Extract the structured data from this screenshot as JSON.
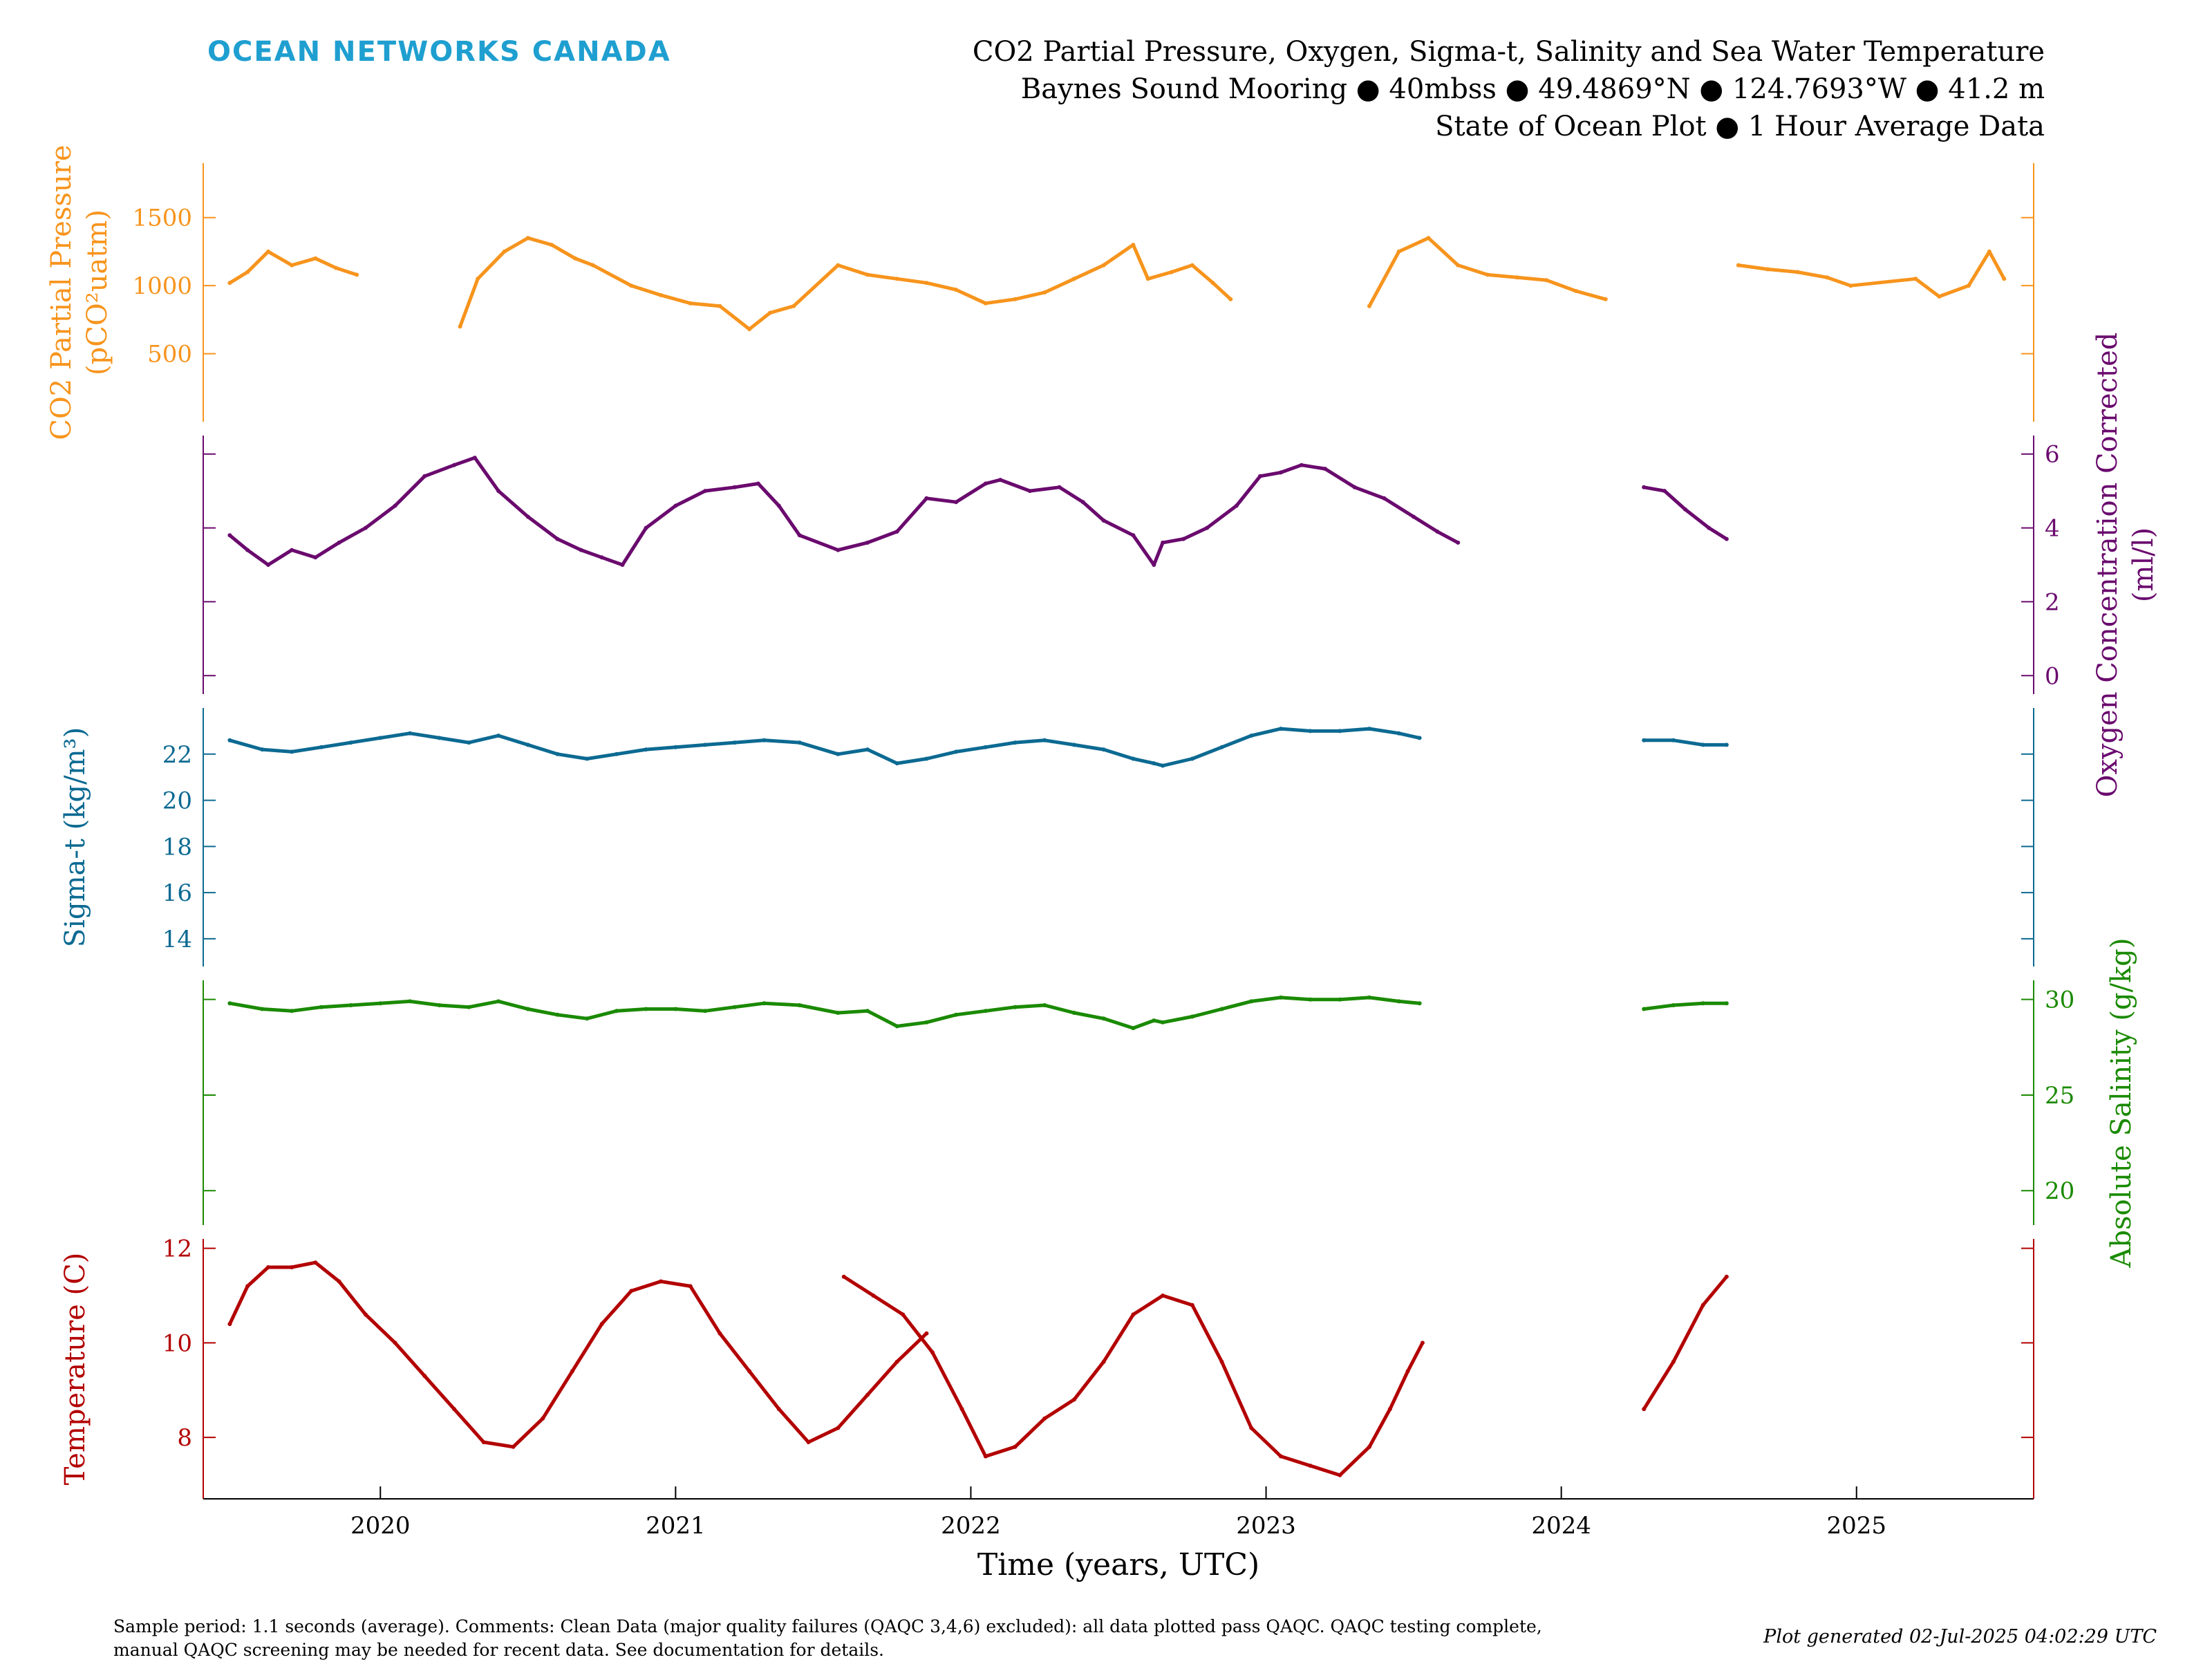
{
  "brand": "OCEAN NETWORKS CANADA",
  "header": {
    "title": "CO2 Partial Pressure, Oxygen, Sigma-t, Salinity and Sea Water Temperature",
    "line2": "Baynes Sound Mooring ● 40mbss ● 49.4869°N ● 124.7693°W ● 41.2 m",
    "line3": "State of Ocean Plot ● 1 Hour Average Data"
  },
  "footer": {
    "comment_line1": "Sample period: 1.1 seconds (average). Comments: Clean Data (major quality failures (QAQC 3,4,6) excluded): all data plotted pass QAQC. QAQC testing complete,",
    "comment_line2": "manual QAQC screening may be needed for recent data. See documentation for details.",
    "generated": "Plot generated 02-Jul-2025 04:02:29 UTC"
  },
  "chart_data": {
    "type": "line",
    "xlabel": "Time (years, UTC)",
    "x_range": [
      2019.4,
      2025.6
    ],
    "x_ticks": [
      "2020",
      "2021",
      "2022",
      "2023",
      "2024",
      "2025"
    ],
    "panels": [
      {
        "key": "co2",
        "label_line1": "CO2 Partial Pressure",
        "label_line2": "(pCO²uatm)",
        "axis_side": "left",
        "color": "#f7941d",
        "ylim": [
          0,
          1900
        ],
        "ticks": [
          "500",
          "1000",
          "1500"
        ],
        "points": [
          [
            2019.49,
            1020
          ],
          [
            2019.55,
            1100
          ],
          [
            2019.62,
            1250
          ],
          [
            2019.7,
            1150
          ],
          [
            2019.78,
            1200
          ],
          [
            2019.85,
            1130
          ],
          [
            2019.92,
            1080
          ],
          [
            2020.27,
            700
          ],
          [
            2020.33,
            1050
          ],
          [
            2020.42,
            1250
          ],
          [
            2020.5,
            1350
          ],
          [
            2020.58,
            1300
          ],
          [
            2020.66,
            1200
          ],
          [
            2020.72,
            1150
          ],
          [
            2020.85,
            1000
          ],
          [
            2020.95,
            930
          ],
          [
            2021.05,
            870
          ],
          [
            2021.15,
            850
          ],
          [
            2021.25,
            680
          ],
          [
            2021.32,
            800
          ],
          [
            2021.4,
            850
          ],
          [
            2021.55,
            1150
          ],
          [
            2021.65,
            1080
          ],
          [
            2021.75,
            1050
          ],
          [
            2021.85,
            1020
          ],
          [
            2021.95,
            970
          ],
          [
            2022.05,
            870
          ],
          [
            2022.15,
            900
          ],
          [
            2022.25,
            950
          ],
          [
            2022.35,
            1050
          ],
          [
            2022.45,
            1150
          ],
          [
            2022.55,
            1300
          ],
          [
            2022.6,
            1050
          ],
          [
            2022.68,
            1100
          ],
          [
            2022.75,
            1150
          ],
          [
            2022.82,
            1020
          ],
          [
            2022.88,
            900
          ],
          [
            2023.35,
            850
          ],
          [
            2023.45,
            1250
          ],
          [
            2023.55,
            1350
          ],
          [
            2023.65,
            1150
          ],
          [
            2023.75,
            1080
          ],
          [
            2023.85,
            1060
          ],
          [
            2023.95,
            1040
          ],
          [
            2024.05,
            960
          ],
          [
            2024.15,
            900
          ],
          [
            2024.6,
            1150
          ],
          [
            2024.7,
            1120
          ],
          [
            2024.8,
            1100
          ],
          [
            2024.9,
            1060
          ],
          [
            2024.98,
            1000
          ],
          [
            2025.2,
            1050
          ],
          [
            2025.28,
            920
          ],
          [
            2025.38,
            1000
          ],
          [
            2025.45,
            1250
          ],
          [
            2025.5,
            1050
          ]
        ]
      },
      {
        "key": "oxygen",
        "label_line1": "Oxygen Concentration Corrected",
        "label_line2": "(ml/l)",
        "axis_side": "right",
        "color": "#6a0a6e",
        "ylim": [
          -0.5,
          6.5
        ],
        "ticks": [
          "0",
          "2",
          "4",
          "6"
        ],
        "points": [
          [
            2019.49,
            3.8
          ],
          [
            2019.55,
            3.4
          ],
          [
            2019.62,
            3.0
          ],
          [
            2019.7,
            3.4
          ],
          [
            2019.78,
            3.2
          ],
          [
            2019.86,
            3.6
          ],
          [
            2019.95,
            4.0
          ],
          [
            2020.05,
            4.6
          ],
          [
            2020.15,
            5.4
          ],
          [
            2020.25,
            5.7
          ],
          [
            2020.32,
            5.9
          ],
          [
            2020.4,
            5.0
          ],
          [
            2020.5,
            4.3
          ],
          [
            2020.6,
            3.7
          ],
          [
            2020.68,
            3.4
          ],
          [
            2020.75,
            3.2
          ],
          [
            2020.82,
            3.0
          ],
          [
            2020.9,
            4.0
          ],
          [
            2021.0,
            4.6
          ],
          [
            2021.1,
            5.0
          ],
          [
            2021.2,
            5.1
          ],
          [
            2021.28,
            5.2
          ],
          [
            2021.35,
            4.6
          ],
          [
            2021.42,
            3.8
          ],
          [
            2021.55,
            3.4
          ],
          [
            2021.65,
            3.6
          ],
          [
            2021.75,
            3.9
          ],
          [
            2021.85,
            4.8
          ],
          [
            2021.95,
            4.7
          ],
          [
            2022.05,
            5.2
          ],
          [
            2022.1,
            5.3
          ],
          [
            2022.2,
            5.0
          ],
          [
            2022.3,
            5.1
          ],
          [
            2022.38,
            4.7
          ],
          [
            2022.45,
            4.2
          ],
          [
            2022.55,
            3.8
          ],
          [
            2022.62,
            3.0
          ],
          [
            2022.65,
            3.6
          ],
          [
            2022.72,
            3.7
          ],
          [
            2022.8,
            4.0
          ],
          [
            2022.9,
            4.6
          ],
          [
            2022.98,
            5.4
          ],
          [
            2023.05,
            5.5
          ],
          [
            2023.12,
            5.7
          ],
          [
            2023.2,
            5.6
          ],
          [
            2023.3,
            5.1
          ],
          [
            2023.4,
            4.8
          ],
          [
            2023.5,
            4.3
          ],
          [
            2023.58,
            3.9
          ],
          [
            2023.65,
            3.6
          ],
          [
            2024.28,
            5.1
          ],
          [
            2024.35,
            5.0
          ],
          [
            2024.42,
            4.5
          ],
          [
            2024.5,
            4.0
          ],
          [
            2024.56,
            3.7
          ]
        ]
      },
      {
        "key": "sigma",
        "label_line1": "Sigma-t (kg/m³)",
        "label_line2": "",
        "axis_side": "left",
        "color": "#0c6a92",
        "ylim": [
          12.8,
          24.0
        ],
        "ticks": [
          "14",
          "16",
          "18",
          "20",
          "22"
        ],
        "points": [
          [
            2019.49,
            22.6
          ],
          [
            2019.6,
            22.2
          ],
          [
            2019.7,
            22.1
          ],
          [
            2019.8,
            22.3
          ],
          [
            2019.9,
            22.5
          ],
          [
            2020.0,
            22.7
          ],
          [
            2020.1,
            22.9
          ],
          [
            2020.2,
            22.7
          ],
          [
            2020.3,
            22.5
          ],
          [
            2020.4,
            22.8
          ],
          [
            2020.5,
            22.4
          ],
          [
            2020.6,
            22.0
          ],
          [
            2020.7,
            21.8
          ],
          [
            2020.8,
            22.0
          ],
          [
            2020.9,
            22.2
          ],
          [
            2021.0,
            22.3
          ],
          [
            2021.1,
            22.4
          ],
          [
            2021.2,
            22.5
          ],
          [
            2021.3,
            22.6
          ],
          [
            2021.42,
            22.5
          ],
          [
            2021.55,
            22.0
          ],
          [
            2021.65,
            22.2
          ],
          [
            2021.75,
            21.6
          ],
          [
            2021.85,
            21.8
          ],
          [
            2021.95,
            22.1
          ],
          [
            2022.05,
            22.3
          ],
          [
            2022.15,
            22.5
          ],
          [
            2022.25,
            22.6
          ],
          [
            2022.35,
            22.4
          ],
          [
            2022.45,
            22.2
          ],
          [
            2022.55,
            21.8
          ],
          [
            2022.62,
            21.6
          ],
          [
            2022.65,
            21.5
          ],
          [
            2022.75,
            21.8
          ],
          [
            2022.85,
            22.3
          ],
          [
            2022.95,
            22.8
          ],
          [
            2023.05,
            23.1
          ],
          [
            2023.15,
            23.0
          ],
          [
            2023.25,
            23.0
          ],
          [
            2023.35,
            23.1
          ],
          [
            2023.45,
            22.9
          ],
          [
            2023.52,
            22.7
          ],
          [
            2024.28,
            22.6
          ],
          [
            2024.38,
            22.6
          ],
          [
            2024.48,
            22.4
          ],
          [
            2024.56,
            22.4
          ]
        ]
      },
      {
        "key": "salinity",
        "label_line1": "Absolute Salinity (g/kg)",
        "label_line2": "",
        "axis_side": "right",
        "color": "#1a8a00",
        "ylim": [
          18.2,
          31.0
        ],
        "ticks": [
          "20",
          "25",
          "30"
        ],
        "points": [
          [
            2019.49,
            29.8
          ],
          [
            2019.6,
            29.5
          ],
          [
            2019.7,
            29.4
          ],
          [
            2019.8,
            29.6
          ],
          [
            2019.9,
            29.7
          ],
          [
            2020.0,
            29.8
          ],
          [
            2020.1,
            29.9
          ],
          [
            2020.2,
            29.7
          ],
          [
            2020.3,
            29.6
          ],
          [
            2020.4,
            29.9
          ],
          [
            2020.5,
            29.5
          ],
          [
            2020.6,
            29.2
          ],
          [
            2020.7,
            29.0
          ],
          [
            2020.8,
            29.4
          ],
          [
            2020.9,
            29.5
          ],
          [
            2021.0,
            29.5
          ],
          [
            2021.1,
            29.4
          ],
          [
            2021.2,
            29.6
          ],
          [
            2021.3,
            29.8
          ],
          [
            2021.42,
            29.7
          ],
          [
            2021.55,
            29.3
          ],
          [
            2021.65,
            29.4
          ],
          [
            2021.75,
            28.6
          ],
          [
            2021.85,
            28.8
          ],
          [
            2021.95,
            29.2
          ],
          [
            2022.05,
            29.4
          ],
          [
            2022.15,
            29.6
          ],
          [
            2022.25,
            29.7
          ],
          [
            2022.35,
            29.3
          ],
          [
            2022.45,
            29.0
          ],
          [
            2022.55,
            28.5
          ],
          [
            2022.62,
            28.9
          ],
          [
            2022.65,
            28.8
          ],
          [
            2022.75,
            29.1
          ],
          [
            2022.85,
            29.5
          ],
          [
            2022.95,
            29.9
          ],
          [
            2023.05,
            30.1
          ],
          [
            2023.15,
            30.0
          ],
          [
            2023.25,
            30.0
          ],
          [
            2023.35,
            30.1
          ],
          [
            2023.45,
            29.9
          ],
          [
            2023.52,
            29.8
          ],
          [
            2024.28,
            29.5
          ],
          [
            2024.38,
            29.7
          ],
          [
            2024.48,
            29.8
          ],
          [
            2024.56,
            29.8
          ]
        ]
      },
      {
        "key": "temperature",
        "label_line1": "Temperature (C)",
        "label_line2": "",
        "axis_side": "left",
        "color": "#b30000",
        "ylim": [
          6.7,
          12.2
        ],
        "ticks": [
          "8",
          "10",
          "12"
        ],
        "points": [
          [
            2019.49,
            10.4
          ],
          [
            2019.55,
            11.2
          ],
          [
            2019.62,
            11.6
          ],
          [
            2019.7,
            11.6
          ],
          [
            2019.78,
            11.7
          ],
          [
            2019.86,
            11.3
          ],
          [
            2019.95,
            10.6
          ],
          [
            2020.05,
            10.0
          ],
          [
            2020.15,
            9.3
          ],
          [
            2020.25,
            8.6
          ],
          [
            2020.35,
            7.9
          ],
          [
            2020.45,
            7.8
          ],
          [
            2020.55,
            8.4
          ],
          [
            2020.65,
            9.4
          ],
          [
            2020.75,
            10.4
          ],
          [
            2020.85,
            11.1
          ],
          [
            2020.95,
            11.3
          ],
          [
            2021.05,
            11.2
          ],
          [
            2021.15,
            10.2
          ],
          [
            2021.25,
            9.4
          ],
          [
            2021.35,
            8.6
          ],
          [
            2021.45,
            7.9
          ],
          [
            2021.55,
            8.2
          ],
          [
            2021.65,
            8.9
          ],
          [
            2021.75,
            9.6
          ],
          [
            2021.85,
            10.2
          ],
          [
            2021.57,
            11.4
          ],
          [
            2021.67,
            11.0
          ],
          [
            2021.77,
            10.6
          ],
          [
            2021.87,
            9.8
          ],
          [
            2021.97,
            8.6
          ],
          [
            2022.05,
            7.6
          ],
          [
            2022.15,
            7.8
          ],
          [
            2022.25,
            8.4
          ],
          [
            2022.35,
            8.8
          ],
          [
            2022.45,
            9.6
          ],
          [
            2022.55,
            10.6
          ],
          [
            2022.65,
            11.0
          ],
          [
            2022.75,
            10.8
          ],
          [
            2022.85,
            9.6
          ],
          [
            2022.95,
            8.2
          ],
          [
            2023.05,
            7.6
          ],
          [
            2023.15,
            7.4
          ],
          [
            2023.25,
            7.2
          ],
          [
            2023.35,
            7.8
          ],
          [
            2023.42,
            8.6
          ],
          [
            2023.48,
            9.4
          ],
          [
            2023.53,
            10.0
          ],
          [
            2024.28,
            8.6
          ],
          [
            2024.38,
            9.6
          ],
          [
            2024.48,
            10.8
          ],
          [
            2024.56,
            11.4
          ]
        ]
      }
    ]
  }
}
